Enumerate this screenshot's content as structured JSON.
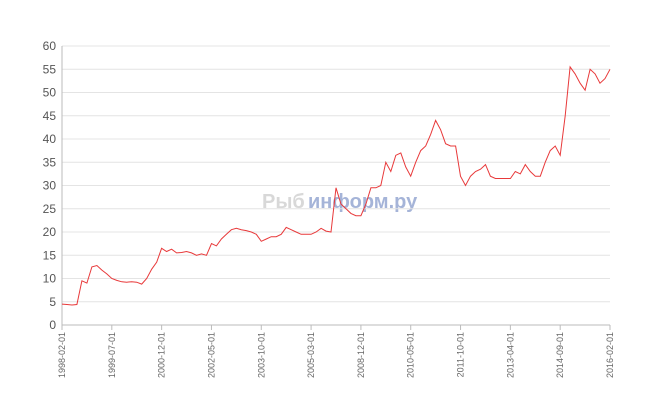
{
  "chart_data": {
    "type": "line",
    "watermark": [
      "Рыб",
      "информ.ру"
    ],
    "categories": [
      "1998-02-01",
      null,
      null,
      null,
      null,
      null,
      null,
      null,
      null,
      null,
      "1999-07-01",
      null,
      null,
      null,
      null,
      null,
      null,
      null,
      null,
      null,
      "2000-12-01",
      null,
      null,
      null,
      null,
      null,
      null,
      null,
      null,
      null,
      "2002-05-01",
      null,
      null,
      null,
      null,
      null,
      null,
      null,
      null,
      null,
      "2003-10-01",
      null,
      null,
      null,
      null,
      null,
      null,
      null,
      null,
      null,
      "2005-03-01",
      null,
      null,
      null,
      null,
      null,
      null,
      null,
      null,
      null,
      "2008-12-01",
      null,
      null,
      null,
      null,
      null,
      null,
      null,
      null,
      null,
      "2010-05-01",
      null,
      null,
      null,
      null,
      null,
      null,
      null,
      null,
      null,
      "2011-10-01",
      null,
      null,
      null,
      null,
      null,
      null,
      null,
      null,
      null,
      "2013-04-01",
      null,
      null,
      null,
      null,
      null,
      null,
      null,
      null,
      null,
      "2014-09-01",
      null,
      null,
      null,
      null,
      null,
      null,
      null,
      null,
      null,
      "2016-02-01"
    ],
    "values": [
      4.5,
      4.4,
      4.3,
      4.4,
      9.5,
      9,
      12.5,
      12.8,
      11.8,
      11,
      10,
      9.6,
      9.3,
      9.2,
      9.3,
      9.2,
      8.8,
      10,
      12,
      13.5,
      16.5,
      15.8,
      16.3,
      15.5,
      15.6,
      15.8,
      15.5,
      15,
      15.3,
      15,
      17.5,
      17,
      18.5,
      19.5,
      20.5,
      20.8,
      20.5,
      20.3,
      20,
      19.5,
      18,
      18.5,
      19,
      19,
      19.5,
      21,
      20.5,
      20,
      19.5,
      19.5,
      19.5,
      20,
      20.8,
      20.2,
      20,
      29.5,
      26,
      25,
      24,
      23.5,
      23.5,
      26,
      29.5,
      29.5,
      30,
      35,
      33,
      36.5,
      37,
      34,
      32,
      35,
      37.5,
      38.5,
      41,
      44,
      42,
      39,
      38.5,
      38.5,
      32,
      30,
      32,
      33,
      33.5,
      34.5,
      32,
      31.5,
      31.5,
      31.5,
      31.5,
      33,
      32.5,
      34.5,
      33,
      32,
      32,
      35,
      37.5,
      38.5,
      36.5,
      45,
      55.5,
      54,
      52,
      50.5,
      55,
      54,
      52,
      53,
      55
    ],
    "color": "#e8393a",
    "ylim": [
      0,
      60
    ],
    "yticks": [
      0,
      5,
      10,
      15,
      20,
      25,
      30,
      35,
      40,
      45,
      50,
      55,
      60
    ],
    "grid": true
  }
}
